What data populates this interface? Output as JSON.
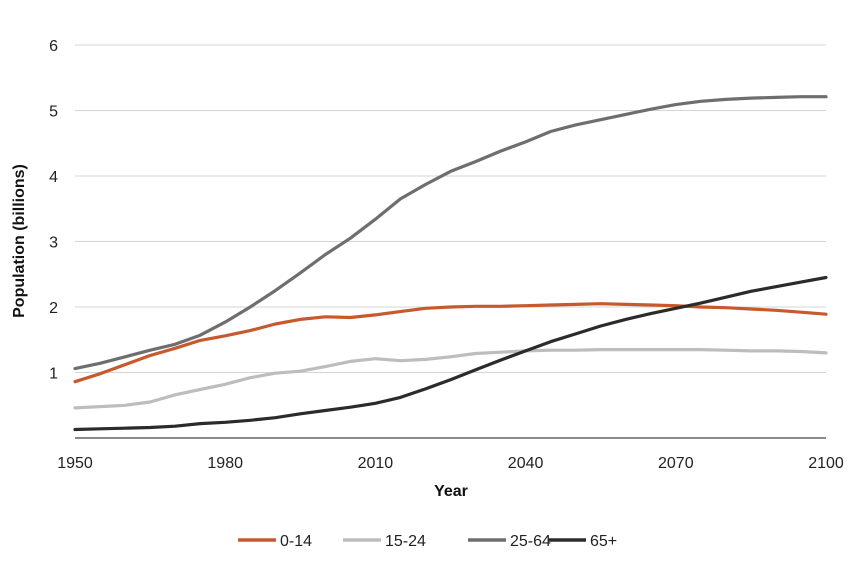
{
  "chart_data": {
    "type": "line",
    "title": "",
    "xlabel": "Year",
    "ylabel": "Population (billions)",
    "xlim": [
      1950,
      2100
    ],
    "ylim": [
      0,
      6
    ],
    "x_ticks": [
      "1950",
      "1980",
      "2010",
      "2040",
      "2070",
      "2100"
    ],
    "y_ticks": [
      "1",
      "2",
      "3",
      "4",
      "5",
      "6"
    ],
    "grid": "horizontal",
    "legend_position": "bottom",
    "x": [
      1950,
      1955,
      1960,
      1965,
      1970,
      1975,
      1980,
      1985,
      1990,
      1995,
      2000,
      2005,
      2010,
      2015,
      2020,
      2025,
      2030,
      2035,
      2040,
      2045,
      2050,
      2055,
      2060,
      2065,
      2070,
      2075,
      2080,
      2085,
      2090,
      2095,
      2100
    ],
    "series": [
      {
        "name": "0-14",
        "color": "#c65a2e",
        "values": [
          0.86,
          0.98,
          1.12,
          1.26,
          1.37,
          1.49,
          1.56,
          1.64,
          1.74,
          1.81,
          1.85,
          1.84,
          1.88,
          1.93,
          1.98,
          2.0,
          2.01,
          2.01,
          2.02,
          2.03,
          2.04,
          2.05,
          2.04,
          2.03,
          2.02,
          2.0,
          1.99,
          1.97,
          1.95,
          1.92,
          1.89
        ]
      },
      {
        "name": "15-24",
        "color": "#bdbdbb",
        "values": [
          0.46,
          0.48,
          0.5,
          0.55,
          0.66,
          0.74,
          0.82,
          0.92,
          0.99,
          1.02,
          1.09,
          1.17,
          1.21,
          1.18,
          1.2,
          1.24,
          1.29,
          1.31,
          1.33,
          1.34,
          1.34,
          1.35,
          1.35,
          1.35,
          1.35,
          1.35,
          1.34,
          1.33,
          1.33,
          1.32,
          1.3
        ]
      },
      {
        "name": "25-64",
        "color": "#6e6e6e",
        "values": [
          1.06,
          1.14,
          1.24,
          1.34,
          1.43,
          1.57,
          1.77,
          2.0,
          2.25,
          2.52,
          2.8,
          3.05,
          3.34,
          3.65,
          3.87,
          4.07,
          4.22,
          4.38,
          4.52,
          4.68,
          4.78,
          4.86,
          4.94,
          5.02,
          5.09,
          5.14,
          5.17,
          5.19,
          5.2,
          5.21,
          5.21
        ]
      },
      {
        "name": "65+",
        "color": "#2b2b2b",
        "values": [
          0.13,
          0.14,
          0.15,
          0.16,
          0.18,
          0.22,
          0.24,
          0.27,
          0.31,
          0.37,
          0.42,
          0.47,
          0.53,
          0.62,
          0.75,
          0.89,
          1.04,
          1.19,
          1.33,
          1.47,
          1.59,
          1.71,
          1.81,
          1.9,
          1.98,
          2.06,
          2.15,
          2.24,
          2.31,
          2.38,
          2.45
        ]
      }
    ]
  }
}
